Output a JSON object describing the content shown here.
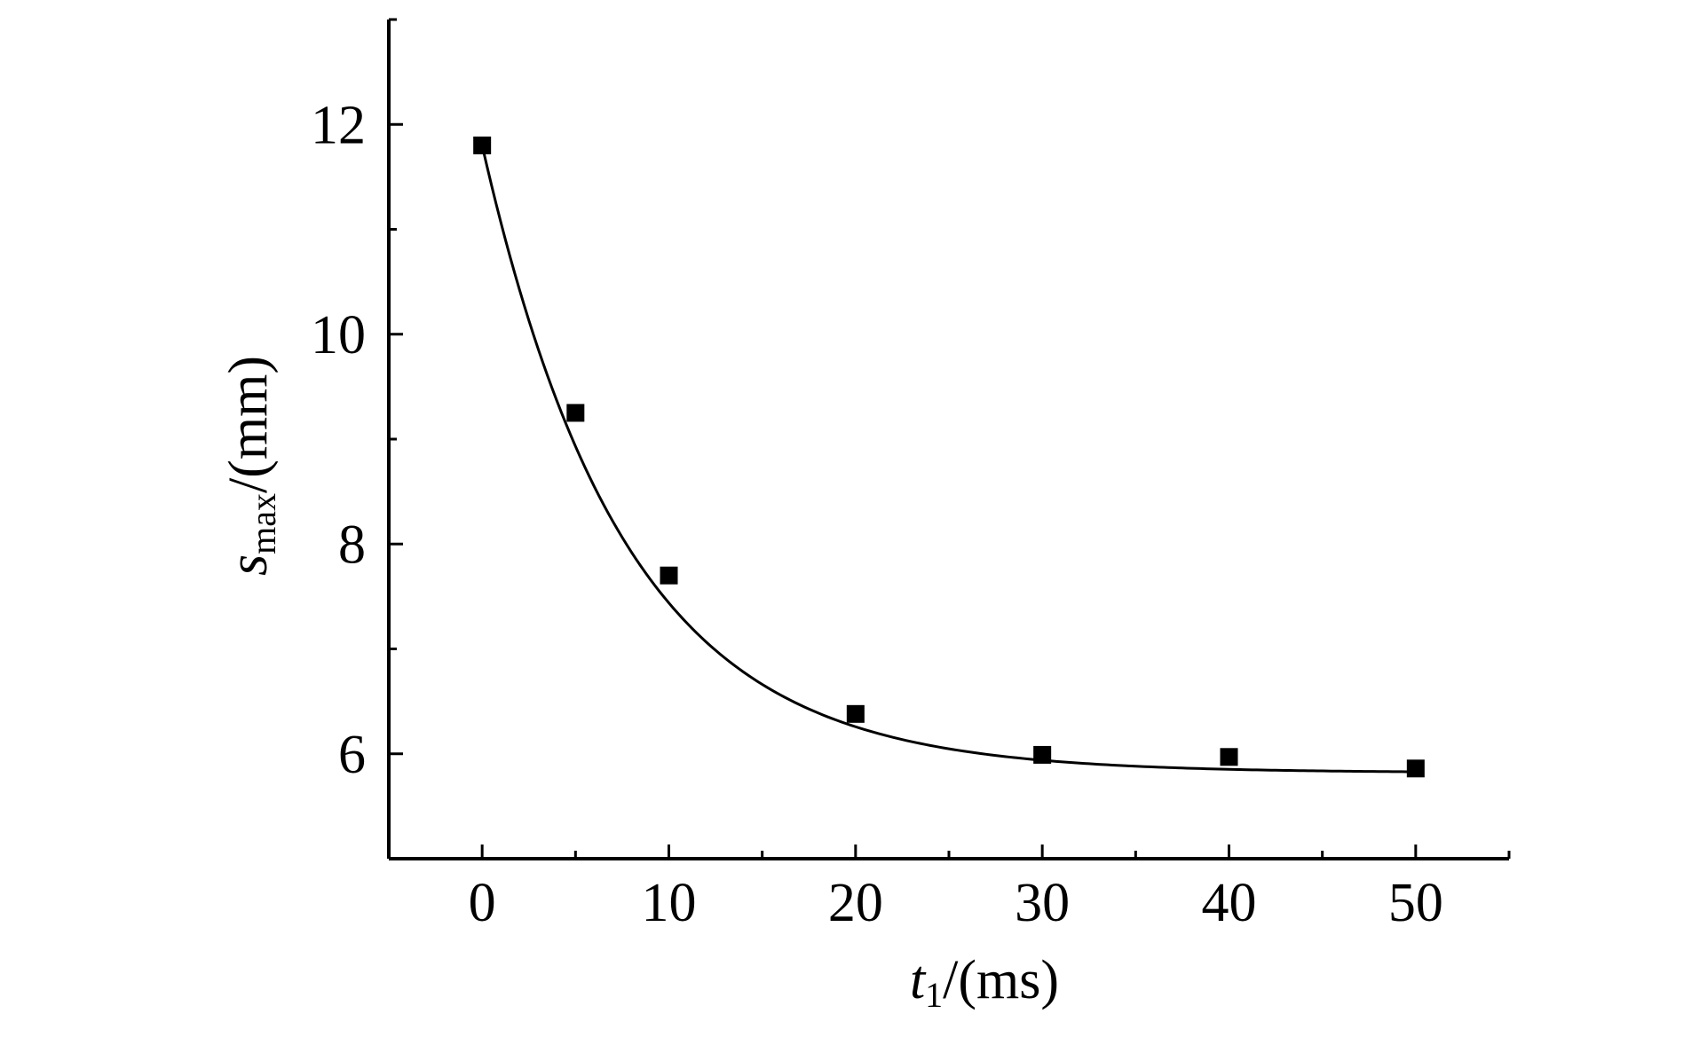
{
  "chart_data": {
    "type": "scatter",
    "title": "",
    "xlabel": {
      "var": "t",
      "sub": "1",
      "unit": "/(ms)"
    },
    "ylabel": {
      "var": "s",
      "sub": "max",
      "unit": "/(mm)"
    },
    "xlim": [
      -5,
      55
    ],
    "ylim": [
      5,
      13
    ],
    "xticks": [
      0,
      10,
      20,
      30,
      40,
      50
    ],
    "yticks": [
      6,
      8,
      10,
      12
    ],
    "x_minor_step": 5,
    "y_minor_step": 1,
    "grid": false,
    "legend": "none",
    "series": [
      {
        "marker": "square",
        "color": "#000000",
        "x": [
          0,
          5,
          10,
          20,
          30,
          40,
          50
        ],
        "y": [
          11.8,
          9.25,
          7.7,
          6.38,
          5.99,
          5.97,
          5.86
        ]
      }
    ],
    "fit_curve": {
      "model": "exponential decay",
      "color": "#000000",
      "y0": 5.82,
      "A": 5.98,
      "tau": 7.65
    }
  }
}
